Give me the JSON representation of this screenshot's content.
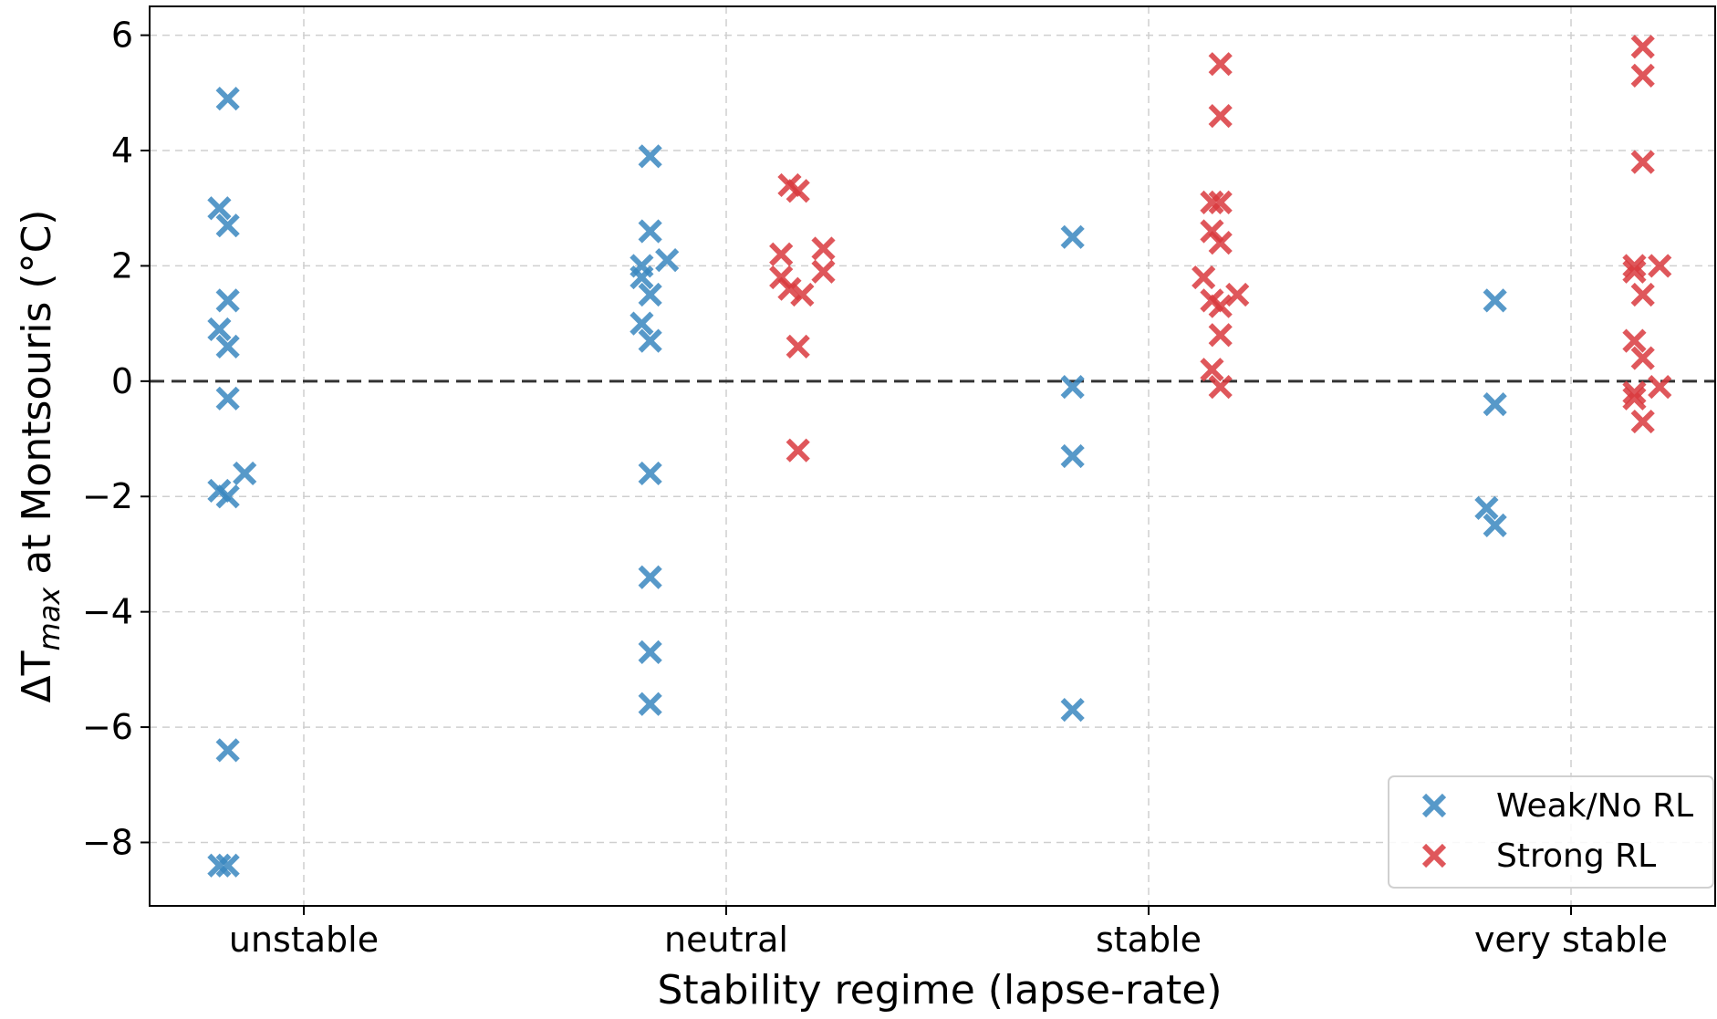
{
  "chart_data": {
    "type": "scatter",
    "xlabel": "Stability regime (lapse-rate)",
    "ylabel": "ΔT",
    "ylabel_sub": "max",
    "ylabel_rest": " at Montsouris (°C)",
    "categories": [
      "unstable",
      "neutral",
      "stable",
      "very stable"
    ],
    "ylim": [
      -9.1,
      6.5
    ],
    "yticks": [
      6,
      4,
      2,
      0,
      -2,
      -4,
      -6,
      -8
    ],
    "ytick_labels": [
      "6",
      "4",
      "2",
      "0",
      "−2",
      "−4",
      "−6",
      "−8"
    ],
    "reference_line": {
      "y": 0,
      "style": "dashed"
    },
    "grid": true,
    "legend_position": "lower-right",
    "series": [
      {
        "name": "Weak/No RL",
        "color": "#3a87c0",
        "marker": "x-filled",
        "offset": -0.18,
        "points": [
          {
            "category": "unstable",
            "y": 4.9,
            "jitter": 0.0
          },
          {
            "category": "unstable",
            "y": 3.0,
            "jitter": -0.02
          },
          {
            "category": "unstable",
            "y": 2.7,
            "jitter": 0.0
          },
          {
            "category": "unstable",
            "y": 1.4,
            "jitter": 0.0
          },
          {
            "category": "unstable",
            "y": 0.9,
            "jitter": -0.02
          },
          {
            "category": "unstable",
            "y": 0.6,
            "jitter": 0.0
          },
          {
            "category": "unstable",
            "y": -0.3,
            "jitter": 0.0
          },
          {
            "category": "unstable",
            "y": -1.6,
            "jitter": 0.04
          },
          {
            "category": "unstable",
            "y": -1.9,
            "jitter": -0.02
          },
          {
            "category": "unstable",
            "y": -2.0,
            "jitter": 0.0
          },
          {
            "category": "unstable",
            "y": -6.4,
            "jitter": 0.0
          },
          {
            "category": "unstable",
            "y": -8.4,
            "jitter": -0.02
          },
          {
            "category": "unstable",
            "y": -8.4,
            "jitter": 0.0
          },
          {
            "category": "neutral",
            "y": 3.9,
            "jitter": 0.0
          },
          {
            "category": "neutral",
            "y": 2.6,
            "jitter": 0.0
          },
          {
            "category": "neutral",
            "y": 2.1,
            "jitter": 0.04
          },
          {
            "category": "neutral",
            "y": 2.0,
            "jitter": -0.02
          },
          {
            "category": "neutral",
            "y": 1.8,
            "jitter": -0.02
          },
          {
            "category": "neutral",
            "y": 1.5,
            "jitter": 0.0
          },
          {
            "category": "neutral",
            "y": 1.0,
            "jitter": -0.02
          },
          {
            "category": "neutral",
            "y": 0.7,
            "jitter": 0.0
          },
          {
            "category": "neutral",
            "y": -1.6,
            "jitter": 0.0
          },
          {
            "category": "neutral",
            "y": -3.4,
            "jitter": 0.0
          },
          {
            "category": "neutral",
            "y": -4.7,
            "jitter": 0.0
          },
          {
            "category": "neutral",
            "y": -5.6,
            "jitter": 0.0
          },
          {
            "category": "stable",
            "y": 2.5,
            "jitter": 0.0
          },
          {
            "category": "stable",
            "y": -0.1,
            "jitter": 0.0
          },
          {
            "category": "stable",
            "y": -1.3,
            "jitter": 0.0
          },
          {
            "category": "stable",
            "y": -5.7,
            "jitter": 0.0
          },
          {
            "category": "very stable",
            "y": 1.4,
            "jitter": 0.0
          },
          {
            "category": "very stable",
            "y": -0.4,
            "jitter": 0.0
          },
          {
            "category": "very stable",
            "y": -2.2,
            "jitter": -0.02
          },
          {
            "category": "very stable",
            "y": -2.5,
            "jitter": 0.0
          }
        ]
      },
      {
        "name": "Strong RL",
        "color": "#d93a3e",
        "marker": "x-filled",
        "offset": 0.17,
        "points": [
          {
            "category": "neutral",
            "y": 3.4,
            "jitter": -0.02
          },
          {
            "category": "neutral",
            "y": 3.3,
            "jitter": 0.0
          },
          {
            "category": "neutral",
            "y": 2.3,
            "jitter": 0.06
          },
          {
            "category": "neutral",
            "y": 2.2,
            "jitter": -0.04
          },
          {
            "category": "neutral",
            "y": 1.9,
            "jitter": 0.06
          },
          {
            "category": "neutral",
            "y": 1.8,
            "jitter": -0.04
          },
          {
            "category": "neutral",
            "y": 1.6,
            "jitter": -0.02
          },
          {
            "category": "neutral",
            "y": 1.5,
            "jitter": 0.01
          },
          {
            "category": "neutral",
            "y": 0.6,
            "jitter": 0.0
          },
          {
            "category": "neutral",
            "y": -1.2,
            "jitter": 0.0
          },
          {
            "category": "stable",
            "y": 5.5,
            "jitter": 0.0
          },
          {
            "category": "stable",
            "y": 4.6,
            "jitter": 0.0
          },
          {
            "category": "stable",
            "y": 3.1,
            "jitter": -0.02
          },
          {
            "category": "stable",
            "y": 3.1,
            "jitter": 0.0
          },
          {
            "category": "stable",
            "y": 2.6,
            "jitter": -0.02
          },
          {
            "category": "stable",
            "y": 2.4,
            "jitter": 0.0
          },
          {
            "category": "stable",
            "y": 1.8,
            "jitter": -0.04
          },
          {
            "category": "stable",
            "y": 1.5,
            "jitter": 0.04
          },
          {
            "category": "stable",
            "y": 1.4,
            "jitter": -0.02
          },
          {
            "category": "stable",
            "y": 1.3,
            "jitter": 0.0
          },
          {
            "category": "stable",
            "y": 0.8,
            "jitter": 0.0
          },
          {
            "category": "stable",
            "y": 0.2,
            "jitter": -0.02
          },
          {
            "category": "stable",
            "y": -0.1,
            "jitter": 0.0
          },
          {
            "category": "very stable",
            "y": 5.8,
            "jitter": 0.0
          },
          {
            "category": "very stable",
            "y": 5.3,
            "jitter": 0.0
          },
          {
            "category": "very stable",
            "y": 3.8,
            "jitter": 0.0
          },
          {
            "category": "very stable",
            "y": 2.0,
            "jitter": -0.02
          },
          {
            "category": "very stable",
            "y": 2.0,
            "jitter": 0.04
          },
          {
            "category": "very stable",
            "y": 1.9,
            "jitter": -0.02
          },
          {
            "category": "very stable",
            "y": 1.5,
            "jitter": 0.0
          },
          {
            "category": "very stable",
            "y": 0.7,
            "jitter": -0.02
          },
          {
            "category": "very stable",
            "y": 0.4,
            "jitter": 0.0
          },
          {
            "category": "very stable",
            "y": -0.1,
            "jitter": 0.04
          },
          {
            "category": "very stable",
            "y": -0.2,
            "jitter": -0.02
          },
          {
            "category": "very stable",
            "y": -0.3,
            "jitter": -0.02
          },
          {
            "category": "very stable",
            "y": -0.7,
            "jitter": 0.0
          }
        ]
      }
    ]
  }
}
